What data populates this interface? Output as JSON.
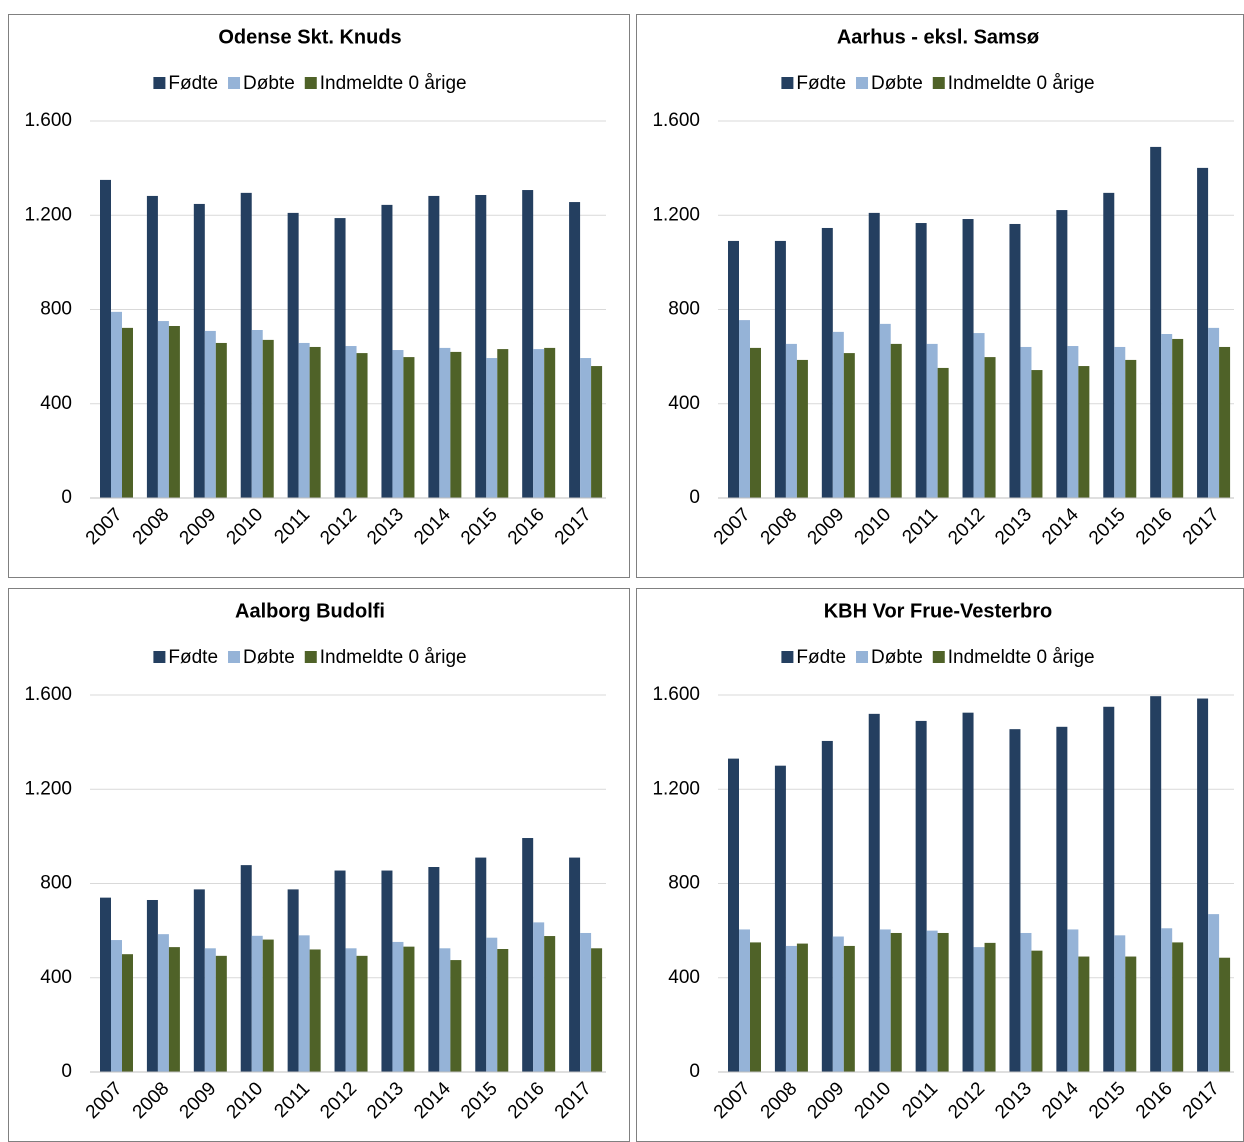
{
  "chart_data": [
    {
      "type": "bar",
      "title": "Odense Skt. Knuds",
      "categories": [
        "2007",
        "2008",
        "2009",
        "2010",
        "2011",
        "2012",
        "2013",
        "2014",
        "2015",
        "2016",
        "2017"
      ],
      "series": [
        {
          "name": "Fødte",
          "color": "#243f60",
          "values": [
            1350,
            1282,
            1248,
            1295,
            1210,
            1188,
            1244,
            1282,
            1286,
            1307,
            1256
          ]
        },
        {
          "name": "Døbte",
          "color": "#95b3d7",
          "values": [
            790,
            751,
            709,
            713,
            658,
            645,
            628,
            637,
            594,
            632,
            594
          ]
        },
        {
          "name": "Indmeldte 0 årige",
          "color": "#4f6228",
          "values": [
            722,
            730,
            658,
            671,
            641,
            615,
            598,
            620,
            632,
            637,
            560
          ]
        }
      ],
      "ylim": [
        0,
        1600
      ],
      "yticks": [
        0,
        400,
        800,
        {
          "value": 1200,
          "label": "1.200"
        },
        {
          "value": 1600,
          "label": "1.600"
        }
      ],
      "grid": true
    },
    {
      "type": "bar",
      "title": "Aarhus - eksl. Samsø",
      "categories": [
        "2007",
        "2008",
        "2009",
        "2010",
        "2011",
        "2012",
        "2013",
        "2014",
        "2015",
        "2016",
        "2017"
      ],
      "series": [
        {
          "name": "Fødte",
          "color": "#243f60",
          "values": [
            1091,
            1091,
            1146,
            1210,
            1167,
            1184,
            1163,
            1222,
            1295,
            1490,
            1401
          ]
        },
        {
          "name": "Døbte",
          "color": "#95b3d7",
          "values": [
            755,
            654,
            705,
            739,
            654,
            700,
            641,
            645,
            641,
            696,
            722
          ]
        },
        {
          "name": "Indmeldte 0 årige",
          "color": "#4f6228",
          "values": [
            637,
            586,
            615,
            654,
            552,
            598,
            543,
            560,
            586,
            675,
            641
          ]
        }
      ],
      "ylim": [
        0,
        1600
      ],
      "yticks": [
        0,
        400,
        800,
        {
          "value": 1200,
          "label": "1.200"
        },
        {
          "value": 1600,
          "label": "1.600"
        }
      ],
      "grid": true
    },
    {
      "type": "bar",
      "title": "Aalborg Budolfi",
      "categories": [
        "2007",
        "2008",
        "2009",
        "2010",
        "2011",
        "2012",
        "2013",
        "2014",
        "2015",
        "2016",
        "2017"
      ],
      "series": [
        {
          "name": "Fødte",
          "color": "#243f60",
          "values": [
            740,
            730,
            775,
            878,
            775,
            855,
            855,
            870,
            910,
            993,
            910
          ]
        },
        {
          "name": "Døbte",
          "color": "#95b3d7",
          "values": [
            560,
            585,
            525,
            578,
            580,
            525,
            552,
            525,
            570,
            635,
            590
          ]
        },
        {
          "name": "Indmeldte 0 årige",
          "color": "#4f6228",
          "values": [
            500,
            530,
            493,
            562,
            520,
            493,
            532,
            475,
            522,
            577,
            525
          ]
        }
      ],
      "ylim": [
        0,
        1600
      ],
      "yticks": [
        0,
        400,
        800,
        {
          "value": 1200,
          "label": "1.200"
        },
        {
          "value": 1600,
          "label": "1.600"
        }
      ],
      "grid": true
    },
    {
      "type": "bar",
      "title": "KBH Vor Frue-Vesterbro",
      "categories": [
        "2007",
        "2008",
        "2009",
        "2010",
        "2011",
        "2012",
        "2013",
        "2014",
        "2015",
        "2016",
        "2017"
      ],
      "series": [
        {
          "name": "Fødte",
          "color": "#243f60",
          "values": [
            1330,
            1300,
            1405,
            1520,
            1490,
            1525,
            1455,
            1465,
            1550,
            1595,
            1585
          ]
        },
        {
          "name": "Døbte",
          "color": "#95b3d7",
          "values": [
            605,
            535,
            575,
            605,
            600,
            530,
            590,
            605,
            580,
            610,
            670
          ]
        },
        {
          "name": "Indmeldte 0 årige",
          "color": "#4f6228",
          "values": [
            550,
            545,
            535,
            590,
            590,
            548,
            515,
            490,
            490,
            550,
            485
          ]
        }
      ],
      "ylim": [
        0,
        1600
      ],
      "yticks": [
        0,
        400,
        800,
        {
          "value": 1200,
          "label": "1.200"
        },
        {
          "value": 1600,
          "label": "1.600"
        }
      ],
      "grid": true
    }
  ]
}
